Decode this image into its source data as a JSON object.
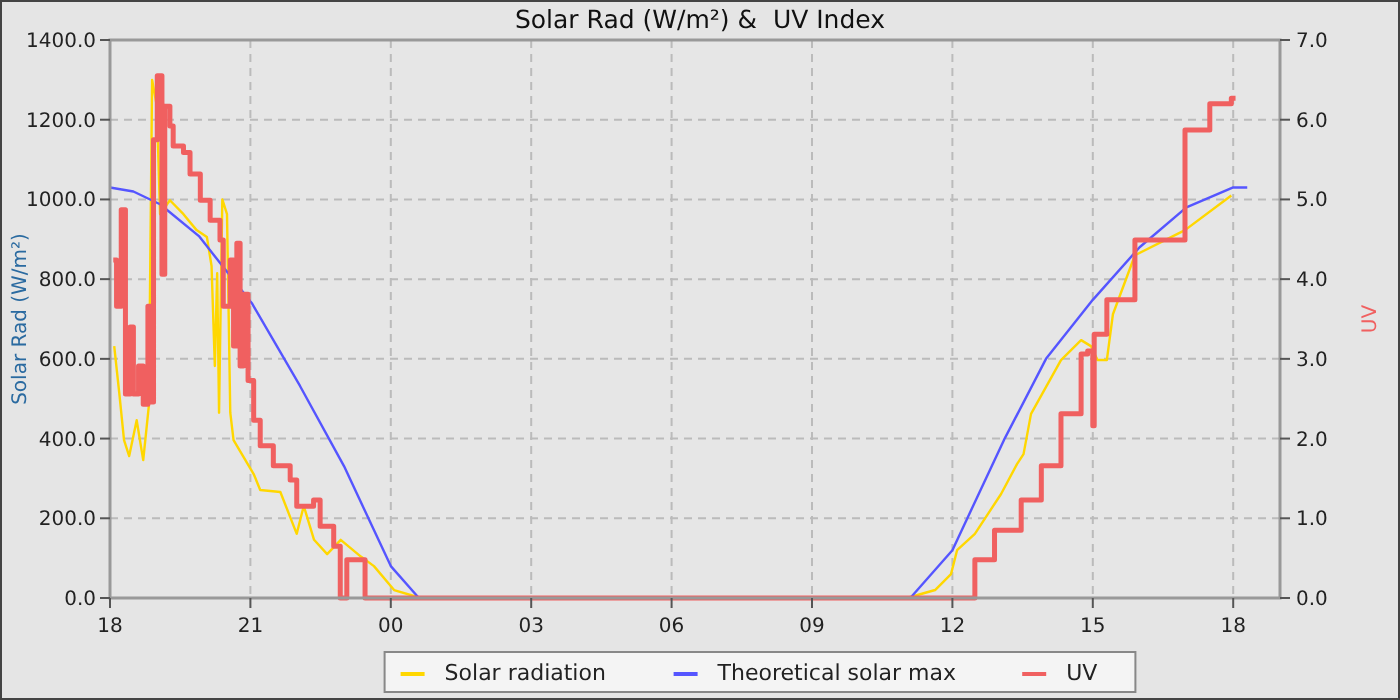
{
  "chart_data": {
    "type": "line",
    "title": "Solar Rad (W/m²) &  UV Index",
    "ylabel": "Solar Rad (W/m²)",
    "y2label": "UV",
    "xlim": [
      18,
      43
    ],
    "xticks": [
      {
        "value": 18,
        "label": "18"
      },
      {
        "value": 21,
        "label": "21"
      },
      {
        "value": 24,
        "label": "00"
      },
      {
        "value": 27,
        "label": "03"
      },
      {
        "value": 30,
        "label": "06"
      },
      {
        "value": 33,
        "label": "09"
      },
      {
        "value": 36,
        "label": "12"
      },
      {
        "value": 39,
        "label": "15"
      },
      {
        "value": 42,
        "label": "18"
      }
    ],
    "ylim": [
      0,
      1400
    ],
    "yticks": [
      {
        "value": 0,
        "label": "0.0"
      },
      {
        "value": 200,
        "label": "200.0"
      },
      {
        "value": 400,
        "label": "400.0"
      },
      {
        "value": 600,
        "label": "600.0"
      },
      {
        "value": 800,
        "label": "800.0"
      },
      {
        "value": 1000,
        "label": "1000.0"
      },
      {
        "value": 1200,
        "label": "1200.0"
      },
      {
        "value": 1400,
        "label": "1400.0"
      }
    ],
    "y2lim": [
      0,
      7
    ],
    "y2ticks": [
      {
        "value": 0,
        "label": "0.0"
      },
      {
        "value": 1,
        "label": "1.0"
      },
      {
        "value": 2,
        "label": "2.0"
      },
      {
        "value": 3,
        "label": "3.0"
      },
      {
        "value": 4,
        "label": "4.0"
      },
      {
        "value": 5,
        "label": "5.0"
      },
      {
        "value": 6,
        "label": "6.0"
      },
      {
        "value": 7,
        "label": "7.0"
      }
    ],
    "grid": true,
    "legend": "bottom",
    "line_style": "solid",
    "series": [
      {
        "name": "Solar radiation",
        "color": "#ffd700",
        "x": [
          18.09,
          18.2,
          18.3,
          18.41,
          18.57,
          18.71,
          18.83,
          18.9,
          19.0,
          19.07,
          19.28,
          19.57,
          19.85,
          20.07,
          20.17,
          20.24,
          20.29,
          20.33,
          20.4,
          20.5,
          20.57,
          20.64,
          21.07,
          21.21,
          21.64,
          21.99,
          22.14,
          22.36,
          22.64,
          22.93,
          23.36,
          23.64,
          24.07,
          24.64,
          25.2,
          35.03,
          35.63,
          35.97,
          36.1,
          36.48,
          37.04,
          37.38,
          37.52,
          37.68,
          38.32,
          38.75,
          38.96,
          39.1,
          39.3,
          39.43,
          39.9,
          40.97,
          41.96
        ],
        "values": [
          632,
          512,
          396,
          356,
          446,
          346,
          482,
          1300,
          1234,
          963,
          998,
          963,
          923,
          906,
          833,
          582,
          815,
          465,
          1000,
          963,
          465,
          396,
          311,
          271,
          266,
          161,
          231,
          146,
          110,
          146,
          104,
          80,
          20,
          0,
          0,
          0,
          20,
          60,
          120,
          161,
          261,
          336,
          361,
          462,
          597,
          647,
          632,
          597,
          597,
          712,
          860,
          923,
          1010
        ]
      },
      {
        "name": "Theoretical solar max",
        "color": "#5555ff",
        "x": [
          18.0,
          18.5,
          19.07,
          19.9,
          21.04,
          22.06,
          23.0,
          24.0,
          24.6,
          35.1,
          36.0,
          37.1,
          38.0,
          39.0,
          40.0,
          41.0,
          42.0,
          42.3
        ],
        "values": [
          1030,
          1020,
          988,
          908,
          738,
          532,
          331,
          80,
          0,
          0,
          120,
          396,
          600,
          748,
          880,
          980,
          1030,
          1030
        ]
      },
      {
        "name": "UV",
        "color": "#f06060",
        "type": "step",
        "axis": "y2",
        "x": [
          18.07,
          18.14,
          18.24,
          18.33,
          18.43,
          18.5,
          18.61,
          18.71,
          18.81,
          18.86,
          18.93,
          19.01,
          19.07,
          19.11,
          19.17,
          19.28,
          19.35,
          19.57,
          19.71,
          19.93,
          20.14,
          20.35,
          20.42,
          20.57,
          20.64,
          20.71,
          20.78,
          20.85,
          20.95,
          21.07,
          21.21,
          21.49,
          21.85,
          21.99,
          22.35,
          22.49,
          22.78,
          22.92,
          23.06,
          23.39,
          23.45,
          36.48,
          36.9,
          37.47,
          37.9,
          38.32,
          38.75,
          38.89,
          39.0,
          39.03,
          39.3,
          39.9,
          40.97,
          41.5,
          41.96,
          42.05
        ],
        "values": [
          4.24,
          3.66,
          4.87,
          2.56,
          3.4,
          2.56,
          2.91,
          2.43,
          3.66,
          2.46,
          5.75,
          6.55,
          6.55,
          4.06,
          6.17,
          5.92,
          5.67,
          5.59,
          5.32,
          4.99,
          4.74,
          4.49,
          3.66,
          4.24,
          3.16,
          4.45,
          2.91,
          3.81,
          2.73,
          2.23,
          1.91,
          1.66,
          1.48,
          1.15,
          1.23,
          0.9,
          0.65,
          0,
          0.48,
          0.48,
          0,
          0.48,
          0.85,
          1.23,
          1.66,
          2.31,
          3.06,
          3.1,
          2.16,
          3.31,
          3.74,
          4.49,
          5.87,
          6.2,
          6.27,
          6.27
        ]
      }
    ]
  }
}
